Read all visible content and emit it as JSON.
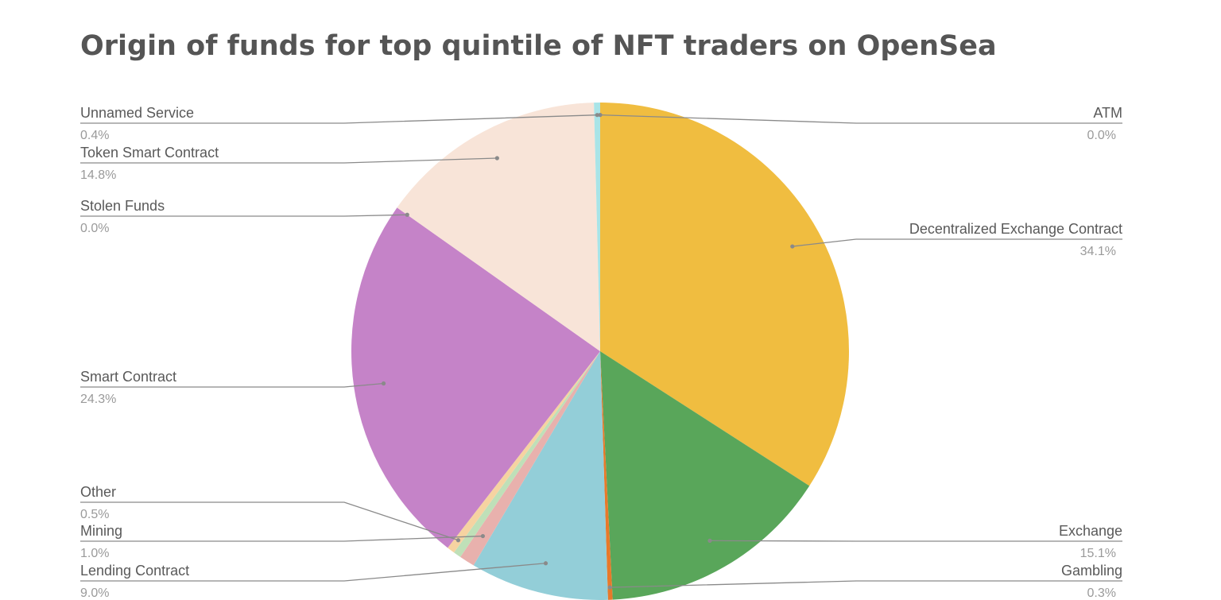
{
  "chart_data": {
    "type": "pie",
    "title": "Origin of funds for top quintile of NFT traders on OpenSea",
    "slices": [
      {
        "name": "ATM",
        "label": "0.0%",
        "value": 0.0,
        "color": "#4f81bd"
      },
      {
        "name": "Decentralized Exchange Contract",
        "label": "34.1%",
        "value": 34.1,
        "color": "#f0bd40"
      },
      {
        "name": "Exchange",
        "label": "15.1%",
        "value": 15.1,
        "color": "#59a65a"
      },
      {
        "name": "Gambling",
        "label": "0.3%",
        "value": 0.3,
        "color": "#e8792a"
      },
      {
        "name": "Lending Contract",
        "label": "9.0%",
        "value": 9.0,
        "color": "#93ced8"
      },
      {
        "name": "Mining",
        "label": "1.0%",
        "value": 1.0,
        "color": "#e8b1ad"
      },
      {
        "name": "Other",
        "label": "0.5%",
        "value": 0.5,
        "color": "#bfe0b8"
      },
      {
        "name": "Other",
        "label": "0.5%",
        "value": 0.5,
        "color": "#f6d3a1"
      },
      {
        "name": "Smart Contract",
        "label": "24.3%",
        "value": 24.3,
        "color": "#c583c8"
      },
      {
        "name": "Stolen Funds",
        "label": "0.0%",
        "value": 0.0,
        "color": "#d0d0d0"
      },
      {
        "name": "Token Smart Contract",
        "label": "14.8%",
        "value": 14.8,
        "color": "#f8e4d8"
      },
      {
        "name": "Unnamed Service",
        "label": "0.4%",
        "value": 0.4,
        "color": "#a9e4e7"
      }
    ],
    "legend": "none",
    "label_style": "outside-with-leader-lines"
  }
}
